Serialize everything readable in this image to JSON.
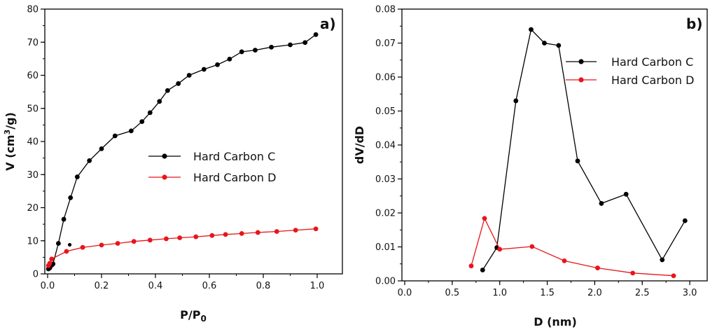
{
  "chart_data": [
    {
      "type": "line",
      "panel_label": "a)",
      "xlabel_main": "P/P",
      "xlabel_sub": "0",
      "ylabel_pre": "V (cm",
      "ylabel_sup": "3",
      "ylabel_post": "/g)",
      "xlim": [
        0,
        1.1
      ],
      "ylim": [
        0,
        80
      ],
      "xticks": [
        "0.0",
        "0.2",
        "0.4",
        "0.6",
        "0.8",
        "1.0"
      ],
      "xtick_values": [
        0,
        0.2,
        0.4,
        0.6,
        0.8,
        1.0
      ],
      "yticks": [
        "0",
        "10",
        "20",
        "30",
        "40",
        "50",
        "60",
        "70",
        "80"
      ],
      "ytick_values": [
        0,
        10,
        20,
        30,
        40,
        50,
        60,
        70,
        80
      ],
      "legend_position": "center-right",
      "series": [
        {
          "name": "Hard Carbon C",
          "color": "#000000",
          "x": [
            0.003,
            0.008,
            0.015,
            0.02,
            0.04,
            0.06,
            0.085,
            0.11,
            0.155,
            0.2,
            0.25,
            0.31,
            0.35,
            0.38,
            0.415,
            0.445,
            0.485,
            0.525,
            0.58,
            0.63,
            0.675,
            0.72,
            0.77,
            0.83,
            0.9,
            0.955,
            0.995
          ],
          "y": [
            1.5,
            1.8,
            2.6,
            3.0,
            9.2,
            16.5,
            23.0,
            29.3,
            34.2,
            37.8,
            41.7,
            43.2,
            46.0,
            48.7,
            52.1,
            55.4,
            57.5,
            60.0,
            61.8,
            63.2,
            64.9,
            67.1,
            67.6,
            68.5,
            69.2,
            69.9,
            72.3
          ]
        },
        {
          "name": "Hard Carbon D",
          "color": "#e8151b",
          "x": [
            0.003,
            0.008,
            0.015,
            0.07,
            0.13,
            0.2,
            0.26,
            0.32,
            0.38,
            0.44,
            0.49,
            0.55,
            0.61,
            0.66,
            0.72,
            0.78,
            0.85,
            0.92,
            0.995
          ],
          "y": [
            2.5,
            3.2,
            4.5,
            6.8,
            8.0,
            8.7,
            9.2,
            9.8,
            10.2,
            10.6,
            10.9,
            11.2,
            11.6,
            11.9,
            12.2,
            12.5,
            12.8,
            13.2,
            13.6
          ]
        }
      ],
      "stray_points": [
        {
          "series": "Hard Carbon C",
          "x": 0.082,
          "y": 8.8
        }
      ]
    },
    {
      "type": "line",
      "panel_label": "b)",
      "xlabel": "D (nm)",
      "ylabel": "dV/dD",
      "xlim": [
        0,
        3.2
      ],
      "ylim": [
        0,
        0.08
      ],
      "xticks": [
        "0.0",
        "0.5",
        "1.0",
        "1.5",
        "2.0",
        "2.5",
        "3.0"
      ],
      "xtick_values": [
        0,
        0.5,
        1.0,
        1.5,
        2.0,
        2.5,
        3.0
      ],
      "yticks": [
        "0.00",
        "0.01",
        "0.02",
        "0.03",
        "0.04",
        "0.05",
        "0.06",
        "0.07",
        "0.08"
      ],
      "ytick_values": [
        0,
        0.01,
        0.02,
        0.03,
        0.04,
        0.05,
        0.06,
        0.07,
        0.08
      ],
      "legend_position": "top-right",
      "series": [
        {
          "name": "Hard Carbon C",
          "color": "#000000",
          "x": [
            0.82,
            0.97,
            1.17,
            1.33,
            1.47,
            1.62,
            1.82,
            2.07,
            2.33,
            2.71,
            2.95
          ],
          "y": [
            0.0032,
            0.0098,
            0.053,
            0.074,
            0.07,
            0.0693,
            0.0353,
            0.0228,
            0.0255,
            0.0062,
            0.0177
          ]
        },
        {
          "name": "Hard Carbon D",
          "color": "#e8151b",
          "x": [
            0.7,
            0.84,
            1.0,
            1.34,
            1.68,
            2.03,
            2.4,
            2.83
          ],
          "y": [
            0.0044,
            0.0184,
            0.0093,
            0.0101,
            0.0059,
            0.0038,
            0.0023,
            0.0015
          ]
        }
      ]
    }
  ]
}
